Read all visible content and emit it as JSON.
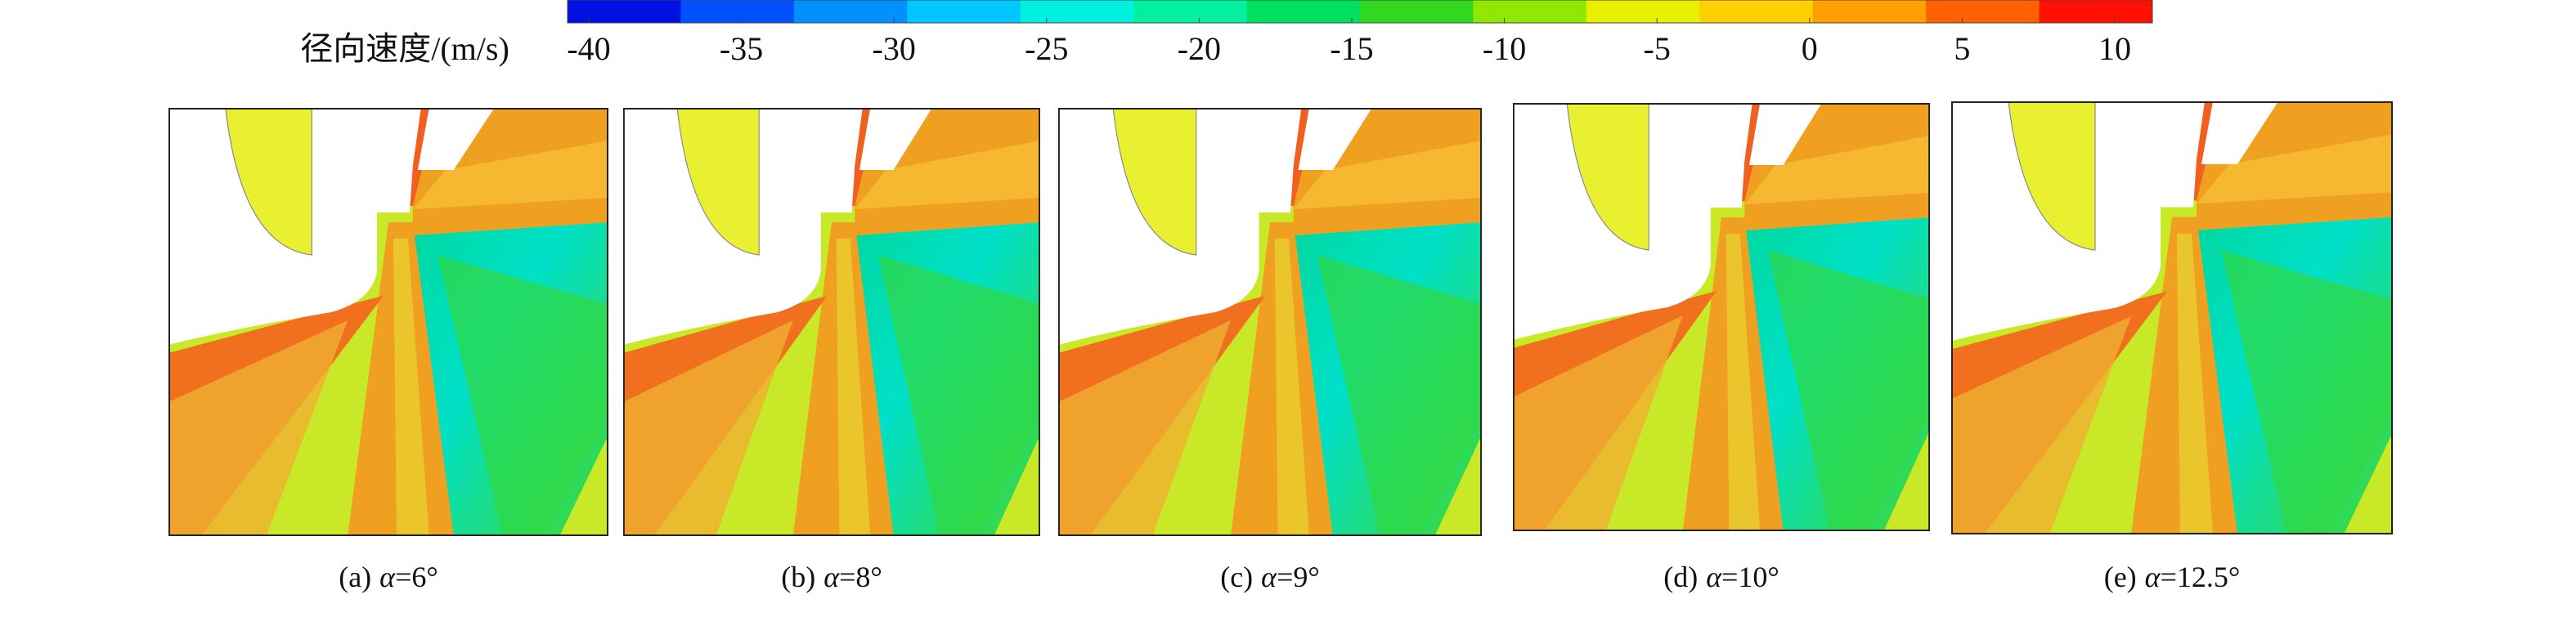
{
  "colorbar": {
    "label": "径向速度/(m/s)",
    "ticks": [
      -40,
      -35,
      -30,
      -25,
      -20,
      -15,
      -10,
      -5,
      0,
      5,
      10
    ],
    "colors": [
      "#0010e0",
      "#0050ff",
      "#0090ff",
      "#00c8ff",
      "#00f0e0",
      "#00f0a0",
      "#00e060",
      "#30d820",
      "#90e800",
      "#e8f000",
      "#ffd000",
      "#ffa000",
      "#ff6000",
      "#ff1000"
    ]
  },
  "panels": [
    {
      "tag": "(a)",
      "symbol": "α",
      "angle": "=6°"
    },
    {
      "tag": "(b)",
      "symbol": "α",
      "angle": "=8°"
    },
    {
      "tag": "(c)",
      "symbol": "α",
      "angle": "=9°"
    },
    {
      "tag": "(d)",
      "symbol": "α",
      "angle": "=10°"
    },
    {
      "tag": "(e)",
      "symbol": "α",
      "angle": "=12.5°"
    }
  ]
}
